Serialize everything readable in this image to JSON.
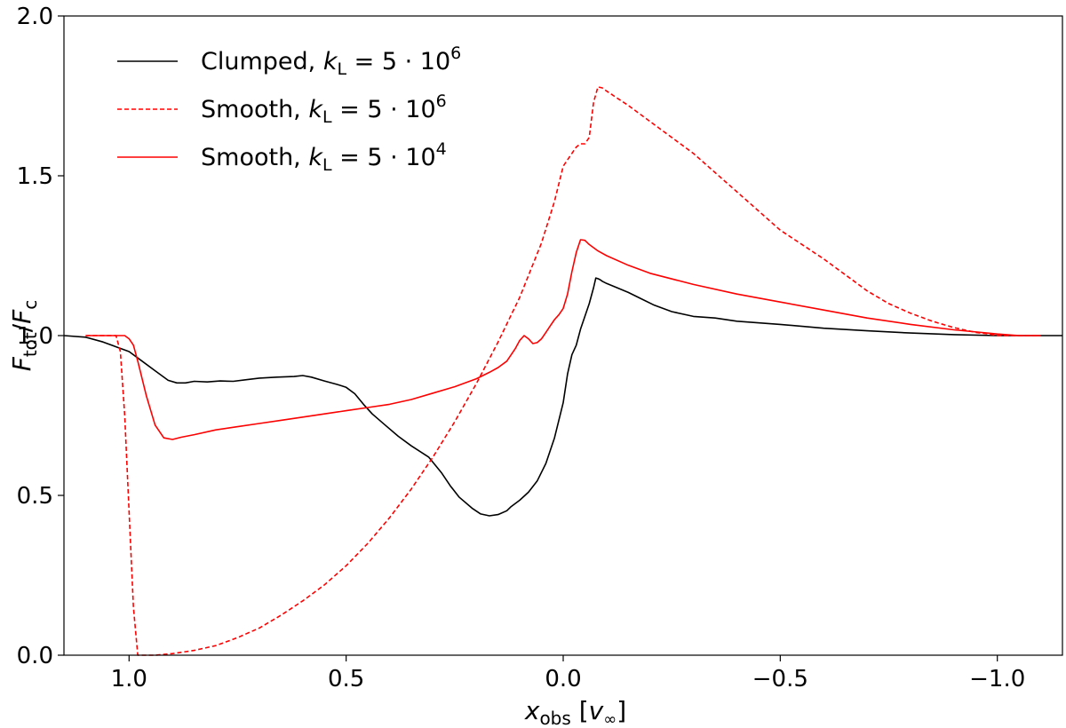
{
  "chart_data": {
    "type": "line",
    "xlabel": {
      "main": "x",
      "sub": "obs",
      "rest_open": " [",
      "v": "v",
      "v_sub": "∞",
      "rest_close": "]"
    },
    "ylabel": {
      "main1": "F",
      "sub1": "tot",
      "slash": "/",
      "main2": "F",
      "sub2": "c"
    },
    "x_reversed": true,
    "xlim": [
      1.15,
      -1.15
    ],
    "ylim": [
      0.0,
      2.0
    ],
    "x_ticks": [
      {
        "value": 1.0,
        "label": "1.0"
      },
      {
        "value": 0.5,
        "label": "0.5"
      },
      {
        "value": 0.0,
        "label": "0.0"
      },
      {
        "value": -0.5,
        "label": "−0.5"
      },
      {
        "value": -1.0,
        "label": "−1.0"
      }
    ],
    "y_ticks": [
      {
        "value": 0.0,
        "label": "0.0"
      },
      {
        "value": 0.5,
        "label": "0.5"
      },
      {
        "value": 1.0,
        "label": "1.0"
      },
      {
        "value": 1.5,
        "label": "1.5"
      },
      {
        "value": 2.0,
        "label": "2.0"
      }
    ],
    "grid": false,
    "legend_position": "top-left",
    "series": [
      {
        "label_prefix": "Clumped, ",
        "label_k": "k",
        "label_k_sub": "L",
        "label_eq": " = 5 · 10",
        "label_exp": "6",
        "color": "#000000",
        "dash": "solid",
        "x": [
          1.15,
          1.1,
          1.06,
          1.03,
          1.0,
          0.97,
          0.94,
          0.91,
          0.89,
          0.87,
          0.85,
          0.82,
          0.79,
          0.76,
          0.73,
          0.7,
          0.66,
          0.62,
          0.6,
          0.58,
          0.55,
          0.52,
          0.5,
          0.48,
          0.46,
          0.44,
          0.41,
          0.38,
          0.35,
          0.31,
          0.28,
          0.26,
          0.24,
          0.21,
          0.19,
          0.17,
          0.15,
          0.13,
          0.12,
          0.1,
          0.08,
          0.06,
          0.04,
          0.02,
          0.0,
          -0.01,
          -0.02,
          -0.03,
          -0.04,
          -0.05,
          -0.06,
          -0.07,
          -0.075,
          -0.08,
          -0.085,
          -0.09,
          -0.1,
          -0.12,
          -0.15,
          -0.18,
          -0.21,
          -0.25,
          -0.3,
          -0.35,
          -0.4,
          -0.5,
          -0.6,
          -0.7,
          -0.8,
          -0.9,
          -1.0,
          -1.05,
          -1.15
        ],
        "y": [
          1.0,
          0.995,
          0.98,
          0.965,
          0.95,
          0.92,
          0.89,
          0.86,
          0.852,
          0.852,
          0.857,
          0.855,
          0.858,
          0.857,
          0.862,
          0.867,
          0.87,
          0.872,
          0.875,
          0.87,
          0.858,
          0.847,
          0.838,
          0.818,
          0.785,
          0.755,
          0.72,
          0.685,
          0.655,
          0.62,
          0.57,
          0.53,
          0.495,
          0.46,
          0.442,
          0.436,
          0.44,
          0.452,
          0.465,
          0.485,
          0.51,
          0.545,
          0.6,
          0.68,
          0.79,
          0.88,
          0.94,
          0.97,
          1.02,
          1.06,
          1.1,
          1.15,
          1.18,
          1.178,
          1.175,
          1.17,
          1.163,
          1.152,
          1.135,
          1.115,
          1.095,
          1.075,
          1.06,
          1.055,
          1.045,
          1.035,
          1.023,
          1.015,
          1.008,
          1.003,
          1.0,
          1.0,
          1.0
        ]
      },
      {
        "label_prefix": "Smooth, ",
        "label_k": "k",
        "label_k_sub": "L",
        "label_eq": " = 5 · 10",
        "label_exp": "6",
        "color": "#ff0000",
        "dash": "dashed",
        "x": [
          1.1,
          1.06,
          1.03,
          1.02,
          1.01,
          1.0,
          0.99,
          0.98,
          0.975,
          0.97,
          0.96,
          0.94,
          0.9,
          0.85,
          0.8,
          0.75,
          0.7,
          0.65,
          0.6,
          0.55,
          0.5,
          0.45,
          0.4,
          0.35,
          0.3,
          0.25,
          0.2,
          0.15,
          0.1,
          0.05,
          0.02,
          0.0,
          -0.02,
          -0.03,
          -0.04,
          -0.05,
          -0.06,
          -0.07,
          -0.08,
          -0.09,
          -0.1,
          -0.15,
          -0.2,
          -0.25,
          -0.3,
          -0.35,
          -0.4,
          -0.45,
          -0.5,
          -0.55,
          -0.6,
          -0.65,
          -0.7,
          -0.75,
          -0.8,
          -0.85,
          -0.9,
          -0.95,
          -0.98,
          -1.0,
          -1.05,
          -1.1
        ],
        "y": [
          1.0,
          1.0,
          1.0,
          0.95,
          0.75,
          0.45,
          0.15,
          0.0,
          0.0,
          0.0,
          0.0,
          0.0,
          0.005,
          0.015,
          0.03,
          0.055,
          0.085,
          0.125,
          0.17,
          0.22,
          0.28,
          0.35,
          0.43,
          0.52,
          0.62,
          0.73,
          0.85,
          0.98,
          1.12,
          1.29,
          1.42,
          1.53,
          1.57,
          1.59,
          1.6,
          1.6,
          1.62,
          1.73,
          1.778,
          1.775,
          1.765,
          1.72,
          1.67,
          1.62,
          1.57,
          1.51,
          1.45,
          1.39,
          1.33,
          1.285,
          1.24,
          1.19,
          1.14,
          1.1,
          1.07,
          1.045,
          1.025,
          1.01,
          1.005,
          1.0,
          1.0,
          1.0
        ]
      },
      {
        "label_prefix": "Smooth, ",
        "label_k": "k",
        "label_k_sub": "L",
        "label_eq": " = 5 · 10",
        "label_exp": "4",
        "color": "#ff0000",
        "dash": "solid",
        "x": [
          1.1,
          1.06,
          1.03,
          1.01,
          1.0,
          0.99,
          0.98,
          0.96,
          0.94,
          0.92,
          0.9,
          0.88,
          0.85,
          0.8,
          0.75,
          0.7,
          0.65,
          0.6,
          0.55,
          0.5,
          0.45,
          0.4,
          0.35,
          0.3,
          0.25,
          0.2,
          0.17,
          0.15,
          0.13,
          0.12,
          0.11,
          0.1,
          0.09,
          0.08,
          0.07,
          0.06,
          0.05,
          0.04,
          0.03,
          0.02,
          0.01,
          0.0,
          -0.01,
          -0.02,
          -0.03,
          -0.04,
          -0.05,
          -0.06,
          -0.07,
          -0.08,
          -0.1,
          -0.15,
          -0.2,
          -0.3,
          -0.4,
          -0.5,
          -0.6,
          -0.7,
          -0.8,
          -0.9,
          -1.0,
          -1.05,
          -1.1
        ],
        "y": [
          1.0,
          1.0,
          1.0,
          1.0,
          0.99,
          0.97,
          0.92,
          0.81,
          0.72,
          0.68,
          0.675,
          0.682,
          0.69,
          0.705,
          0.715,
          0.725,
          0.735,
          0.745,
          0.755,
          0.765,
          0.775,
          0.785,
          0.8,
          0.82,
          0.84,
          0.865,
          0.885,
          0.9,
          0.92,
          0.94,
          0.96,
          0.985,
          1.0,
          0.99,
          0.975,
          0.978,
          0.99,
          1.01,
          1.03,
          1.05,
          1.065,
          1.085,
          1.13,
          1.2,
          1.26,
          1.3,
          1.298,
          1.285,
          1.275,
          1.265,
          1.25,
          1.22,
          1.195,
          1.16,
          1.13,
          1.105,
          1.08,
          1.055,
          1.035,
          1.018,
          1.005,
          1.0,
          1.0
        ]
      }
    ]
  }
}
